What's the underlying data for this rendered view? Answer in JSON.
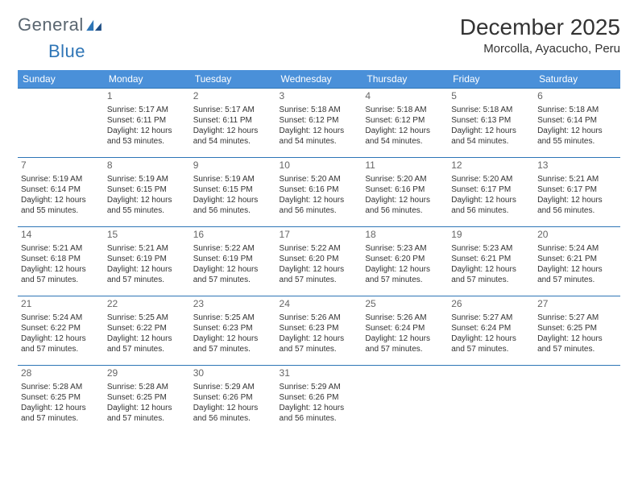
{
  "logo": {
    "word1": "General",
    "word2": "Blue"
  },
  "title": "December 2025",
  "location": "Morcolla, Ayacucho, Peru",
  "weekday_labels": [
    "Sunday",
    "Monday",
    "Tuesday",
    "Wednesday",
    "Thursday",
    "Friday",
    "Saturday"
  ],
  "colors": {
    "header_bg": "#4a90d9",
    "border": "#2e75b6",
    "text": "#333333",
    "muted": "#666666",
    "background": "#ffffff"
  },
  "typography": {
    "title_fontsize": 28,
    "location_fontsize": 15,
    "weekday_fontsize": 12,
    "daynum_fontsize": 12,
    "body_fontsize": 10
  },
  "calendar": {
    "type": "table",
    "columns": 7,
    "rows": 5,
    "start_offset": 1,
    "days": [
      {
        "n": "1",
        "sunrise": "Sunrise: 5:17 AM",
        "sunset": "Sunset: 6:11 PM",
        "daylight": "Daylight: 12 hours and 53 minutes."
      },
      {
        "n": "2",
        "sunrise": "Sunrise: 5:17 AM",
        "sunset": "Sunset: 6:11 PM",
        "daylight": "Daylight: 12 hours and 54 minutes."
      },
      {
        "n": "3",
        "sunrise": "Sunrise: 5:18 AM",
        "sunset": "Sunset: 6:12 PM",
        "daylight": "Daylight: 12 hours and 54 minutes."
      },
      {
        "n": "4",
        "sunrise": "Sunrise: 5:18 AM",
        "sunset": "Sunset: 6:12 PM",
        "daylight": "Daylight: 12 hours and 54 minutes."
      },
      {
        "n": "5",
        "sunrise": "Sunrise: 5:18 AM",
        "sunset": "Sunset: 6:13 PM",
        "daylight": "Daylight: 12 hours and 54 minutes."
      },
      {
        "n": "6",
        "sunrise": "Sunrise: 5:18 AM",
        "sunset": "Sunset: 6:14 PM",
        "daylight": "Daylight: 12 hours and 55 minutes."
      },
      {
        "n": "7",
        "sunrise": "Sunrise: 5:19 AM",
        "sunset": "Sunset: 6:14 PM",
        "daylight": "Daylight: 12 hours and 55 minutes."
      },
      {
        "n": "8",
        "sunrise": "Sunrise: 5:19 AM",
        "sunset": "Sunset: 6:15 PM",
        "daylight": "Daylight: 12 hours and 55 minutes."
      },
      {
        "n": "9",
        "sunrise": "Sunrise: 5:19 AM",
        "sunset": "Sunset: 6:15 PM",
        "daylight": "Daylight: 12 hours and 56 minutes."
      },
      {
        "n": "10",
        "sunrise": "Sunrise: 5:20 AM",
        "sunset": "Sunset: 6:16 PM",
        "daylight": "Daylight: 12 hours and 56 minutes."
      },
      {
        "n": "11",
        "sunrise": "Sunrise: 5:20 AM",
        "sunset": "Sunset: 6:16 PM",
        "daylight": "Daylight: 12 hours and 56 minutes."
      },
      {
        "n": "12",
        "sunrise": "Sunrise: 5:20 AM",
        "sunset": "Sunset: 6:17 PM",
        "daylight": "Daylight: 12 hours and 56 minutes."
      },
      {
        "n": "13",
        "sunrise": "Sunrise: 5:21 AM",
        "sunset": "Sunset: 6:17 PM",
        "daylight": "Daylight: 12 hours and 56 minutes."
      },
      {
        "n": "14",
        "sunrise": "Sunrise: 5:21 AM",
        "sunset": "Sunset: 6:18 PM",
        "daylight": "Daylight: 12 hours and 57 minutes."
      },
      {
        "n": "15",
        "sunrise": "Sunrise: 5:21 AM",
        "sunset": "Sunset: 6:19 PM",
        "daylight": "Daylight: 12 hours and 57 minutes."
      },
      {
        "n": "16",
        "sunrise": "Sunrise: 5:22 AM",
        "sunset": "Sunset: 6:19 PM",
        "daylight": "Daylight: 12 hours and 57 minutes."
      },
      {
        "n": "17",
        "sunrise": "Sunrise: 5:22 AM",
        "sunset": "Sunset: 6:20 PM",
        "daylight": "Daylight: 12 hours and 57 minutes."
      },
      {
        "n": "18",
        "sunrise": "Sunrise: 5:23 AM",
        "sunset": "Sunset: 6:20 PM",
        "daylight": "Daylight: 12 hours and 57 minutes."
      },
      {
        "n": "19",
        "sunrise": "Sunrise: 5:23 AM",
        "sunset": "Sunset: 6:21 PM",
        "daylight": "Daylight: 12 hours and 57 minutes."
      },
      {
        "n": "20",
        "sunrise": "Sunrise: 5:24 AM",
        "sunset": "Sunset: 6:21 PM",
        "daylight": "Daylight: 12 hours and 57 minutes."
      },
      {
        "n": "21",
        "sunrise": "Sunrise: 5:24 AM",
        "sunset": "Sunset: 6:22 PM",
        "daylight": "Daylight: 12 hours and 57 minutes."
      },
      {
        "n": "22",
        "sunrise": "Sunrise: 5:25 AM",
        "sunset": "Sunset: 6:22 PM",
        "daylight": "Daylight: 12 hours and 57 minutes."
      },
      {
        "n": "23",
        "sunrise": "Sunrise: 5:25 AM",
        "sunset": "Sunset: 6:23 PM",
        "daylight": "Daylight: 12 hours and 57 minutes."
      },
      {
        "n": "24",
        "sunrise": "Sunrise: 5:26 AM",
        "sunset": "Sunset: 6:23 PM",
        "daylight": "Daylight: 12 hours and 57 minutes."
      },
      {
        "n": "25",
        "sunrise": "Sunrise: 5:26 AM",
        "sunset": "Sunset: 6:24 PM",
        "daylight": "Daylight: 12 hours and 57 minutes."
      },
      {
        "n": "26",
        "sunrise": "Sunrise: 5:27 AM",
        "sunset": "Sunset: 6:24 PM",
        "daylight": "Daylight: 12 hours and 57 minutes."
      },
      {
        "n": "27",
        "sunrise": "Sunrise: 5:27 AM",
        "sunset": "Sunset: 6:25 PM",
        "daylight": "Daylight: 12 hours and 57 minutes."
      },
      {
        "n": "28",
        "sunrise": "Sunrise: 5:28 AM",
        "sunset": "Sunset: 6:25 PM",
        "daylight": "Daylight: 12 hours and 57 minutes."
      },
      {
        "n": "29",
        "sunrise": "Sunrise: 5:28 AM",
        "sunset": "Sunset: 6:25 PM",
        "daylight": "Daylight: 12 hours and 57 minutes."
      },
      {
        "n": "30",
        "sunrise": "Sunrise: 5:29 AM",
        "sunset": "Sunset: 6:26 PM",
        "daylight": "Daylight: 12 hours and 56 minutes."
      },
      {
        "n": "31",
        "sunrise": "Sunrise: 5:29 AM",
        "sunset": "Sunset: 6:26 PM",
        "daylight": "Daylight: 12 hours and 56 minutes."
      }
    ]
  }
}
